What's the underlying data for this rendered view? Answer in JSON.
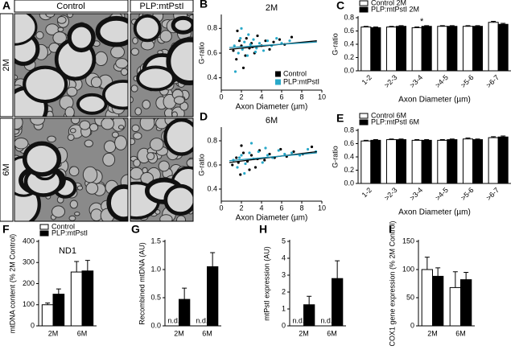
{
  "panel_a": {
    "label": "A",
    "columns": [
      "Control",
      "PLP:mtPstI"
    ],
    "rows": [
      "2M",
      "6M"
    ]
  },
  "chart_data": [
    {
      "panel": "B",
      "type": "scatter",
      "title": "2M",
      "x_label": "Axon Diameter (µm)",
      "y_label": "G-ratio",
      "xlim": [
        0,
        10
      ],
      "xticks": [
        0,
        2,
        4,
        6,
        8,
        10
      ],
      "ylim": [
        0.3,
        0.9
      ],
      "yticks": [
        0.4,
        0.6,
        0.8
      ],
      "legend": "lower right",
      "series": [
        {
          "name": "Control",
          "color": "#000000",
          "x": [
            1.2,
            1.5,
            1.8,
            2.0,
            2.2,
            2.5,
            2.8,
            3.0,
            3.3,
            3.6,
            4.0,
            4.4,
            4.8,
            5.2,
            5.8,
            6.3,
            7.0,
            1.6,
            2.4,
            3.1
          ],
          "values": [
            0.62,
            0.55,
            0.7,
            0.66,
            0.48,
            0.72,
            0.64,
            0.68,
            0.6,
            0.74,
            0.66,
            0.7,
            0.63,
            0.69,
            0.71,
            0.67,
            0.73,
            0.78,
            0.58,
            0.65
          ],
          "trend": {
            "x": [
              0.8,
              9.5
            ],
            "values": [
              0.63,
              0.7
            ]
          }
        },
        {
          "name": "PLP:mtPstI",
          "color": "#29a9c9",
          "x": [
            1.3,
            1.7,
            1.9,
            2.1,
            2.3,
            2.6,
            2.9,
            3.2,
            3.5,
            3.8,
            4.2,
            4.6,
            5.0,
            5.5,
            6.0,
            6.8,
            1.4,
            2.7,
            3.4,
            2.0
          ],
          "values": [
            0.66,
            0.6,
            0.72,
            0.63,
            0.69,
            0.58,
            0.67,
            0.71,
            0.64,
            0.68,
            0.62,
            0.7,
            0.66,
            0.72,
            0.68,
            0.7,
            0.45,
            0.75,
            0.61,
            0.8
          ],
          "trend": {
            "x": [
              0.8,
              9.5
            ],
            "values": [
              0.645,
              0.69
            ]
          }
        }
      ]
    },
    {
      "panel": "D",
      "type": "scatter",
      "title": "6M",
      "x_label": "Axon Diameter (µm)",
      "y_label": "G-ratio",
      "xlim": [
        0,
        10
      ],
      "xticks": [
        0,
        2,
        4,
        6,
        8,
        10
      ],
      "ylim": [
        0.3,
        0.9
      ],
      "yticks": [
        0.4,
        0.6,
        0.8
      ],
      "series": [
        {
          "color": "#000000",
          "x": [
            1.1,
            1.5,
            1.9,
            2.2,
            2.6,
            3.0,
            3.4,
            3.8,
            4.3,
            4.8,
            5.3,
            5.9,
            6.5,
            7.2,
            8.1,
            9.0,
            2.0,
            2.8,
            3.6,
            1.7
          ],
          "values": [
            0.6,
            0.66,
            0.52,
            0.7,
            0.63,
            0.68,
            0.58,
            0.72,
            0.64,
            0.69,
            0.66,
            0.73,
            0.67,
            0.71,
            0.69,
            0.75,
            0.76,
            0.56,
            0.65,
            0.62
          ],
          "trend": {
            "x": [
              0.8,
              9.5
            ],
            "values": [
              0.62,
              0.71
            ]
          }
        },
        {
          "color": "#29a9c9",
          "x": [
            1.2,
            1.6,
            2.0,
            2.4,
            2.8,
            3.2,
            3.7,
            4.1,
            4.6,
            5.1,
            5.7,
            6.3,
            7.0,
            7.8,
            8.6,
            9.4,
            2.3,
            3.0,
            4.4,
            1.8
          ],
          "values": [
            0.64,
            0.58,
            0.68,
            0.61,
            0.7,
            0.65,
            0.71,
            0.62,
            0.68,
            0.66,
            0.72,
            0.69,
            0.7,
            0.68,
            0.73,
            0.71,
            0.53,
            0.78,
            0.74,
            0.66
          ],
          "trend": {
            "x": [
              0.8,
              9.5
            ],
            "values": [
              0.635,
              0.7
            ]
          }
        }
      ]
    },
    {
      "panel": "C",
      "type": "bar",
      "x_label": "Axon Diameter (µm)",
      "y_label": "G-ratio",
      "xtick_rotation": -45,
      "legend": "upper left",
      "categories": [
        "1-2",
        ">2-3",
        ">3-4",
        ">4-5",
        ">5-6",
        ">6-7"
      ],
      "ylim": [
        0,
        0.8
      ],
      "yticks": [
        {
          "value": 0,
          "label": "0.0"
        },
        0.2,
        0.4,
        0.6,
        0.8
      ],
      "series": [
        {
          "name": "Control 2M",
          "color": "#ffffff",
          "values": [
            0.66,
            0.66,
            0.65,
            0.67,
            0.67,
            0.73
          ],
          "errors": [
            0.01,
            0.01,
            0.01,
            0.01,
            0.01,
            0.015
          ]
        },
        {
          "name": "PLP:mtPstI 2M",
          "color": "#000000",
          "values": [
            0.65,
            0.67,
            0.67,
            0.67,
            0.67,
            0.7
          ],
          "errors": [
            0.01,
            0.01,
            0.01,
            0.01,
            0.01,
            0.015
          ]
        }
      ],
      "annotations": [
        {
          "text": "*",
          "category": ">3-4"
        }
      ]
    },
    {
      "panel": "E",
      "type": "bar",
      "x_label": "Axon Diameter (µm)",
      "y_label": "G-ratio",
      "xtick_rotation": -45,
      "legend": "upper left",
      "categories": [
        "1-2",
        ">2-3",
        ">3-4",
        ">4-5",
        ">5-6",
        ">6-7"
      ],
      "ylim": [
        0,
        0.8
      ],
      "yticks": [
        {
          "value": 0,
          "label": "0.0"
        },
        0.2,
        0.4,
        0.6,
        0.8
      ],
      "series": [
        {
          "name": "Control 6M",
          "color": "#ffffff",
          "values": [
            0.64,
            0.66,
            0.65,
            0.65,
            0.67,
            0.69
          ],
          "errors": [
            0.01,
            0.01,
            0.01,
            0.01,
            0.015,
            0.015
          ]
        },
        {
          "name": "PLP:mtPstI 6M",
          "color": "#000000",
          "values": [
            0.65,
            0.66,
            0.65,
            0.66,
            0.66,
            0.7
          ],
          "errors": [
            0.01,
            0.01,
            0.01,
            0.01,
            0.01,
            0.015
          ]
        }
      ]
    },
    {
      "panel": "F",
      "type": "bar",
      "title": "ND1",
      "y_label": "mtDNA content (% 2M Control)",
      "legend": "upper left",
      "categories": [
        "2M",
        "6M"
      ],
      "ylim": [
        0,
        400
      ],
      "yticks": [
        0,
        100,
        200,
        300,
        400
      ],
      "series": [
        {
          "name": "Control",
          "color": "#ffffff",
          "values": [
            100,
            255
          ],
          "errors": [
            8,
            50
          ]
        },
        {
          "name": "PLP:mtPstI",
          "color": "#000000",
          "values": [
            150,
            260
          ],
          "errors": [
            25,
            50
          ]
        }
      ]
    },
    {
      "panel": "G",
      "type": "bar",
      "y_label": "Recombined mtDNA (AU)",
      "categories": [
        "2M",
        "6M"
      ],
      "ylim": [
        0,
        1.5
      ],
      "yticks": [
        {
          "value": 0,
          "label": "0.0"
        },
        0.5,
        {
          "value": 1,
          "label": "1.0"
        },
        1.5
      ],
      "series": [
        {
          "color": "#ffffff",
          "values": [
            null,
            null
          ],
          "value_labels": [
            "n.d.",
            "n.d."
          ]
        },
        {
          "color": "#000000",
          "values": [
            0.47,
            1.05
          ],
          "errors": [
            0.2,
            0.25
          ]
        }
      ]
    },
    {
      "panel": "H",
      "type": "bar",
      "y_label": "mtPstI expression (AU)",
      "categories": [
        "2M",
        "6M"
      ],
      "ylim": [
        0,
        5
      ],
      "yticks": [
        0,
        1,
        2,
        3,
        4,
        5
      ],
      "series": [
        {
          "color": "#ffffff",
          "values": [
            null,
            null
          ],
          "value_labels": [
            "n.d.",
            "n.d."
          ]
        },
        {
          "color": "#000000",
          "values": [
            1.25,
            2.8
          ],
          "errors": [
            0.5,
            1.05
          ]
        }
      ]
    },
    {
      "panel": "I",
      "type": "bar",
      "y_label": "COX1 gene expression (% 2M Control)",
      "categories": [
        "2M",
        "6M"
      ],
      "ylim": [
        0,
        150
      ],
      "yticks": [
        0,
        50,
        100,
        150
      ],
      "series": [
        {
          "color": "#ffffff",
          "values": [
            100,
            68
          ],
          "errors": [
            22,
            28
          ]
        },
        {
          "color": "#000000",
          "values": [
            88,
            82
          ],
          "errors": [
            15,
            13
          ]
        }
      ]
    }
  ]
}
